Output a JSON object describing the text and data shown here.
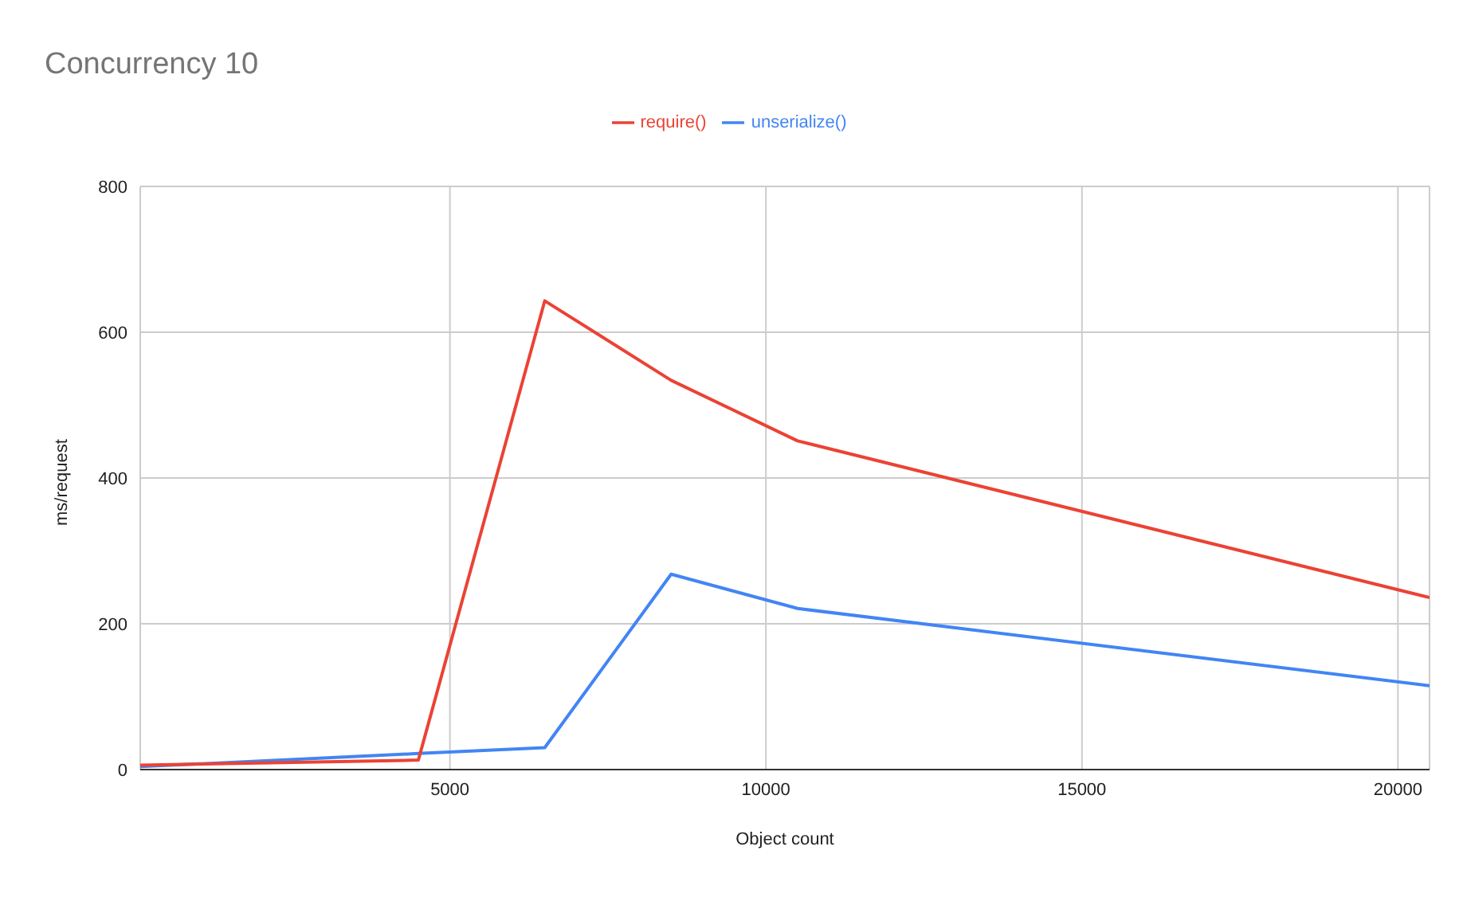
{
  "chart_data": {
    "type": "line",
    "title": "Concurrency 10",
    "xlabel": "Object count",
    "ylabel": "ms/request",
    "x": [
      100,
      4500,
      6500,
      8500,
      10500,
      20500
    ],
    "series": [
      {
        "name": "unserialize()",
        "color": "#4285f4",
        "values": [
          4,
          22,
          30,
          268,
          221,
          115
        ]
      },
      {
        "name": "require()",
        "color": "#ea4335",
        "values": [
          6,
          13,
          643,
          534,
          451,
          236
        ]
      }
    ],
    "xlim": [
      100,
      20500
    ],
    "xticks": [
      5000,
      10000,
      15000,
      20000
    ],
    "ylim": [
      0,
      800
    ],
    "yticks": [
      0,
      200,
      400,
      600,
      800
    ],
    "grid": true,
    "legend": "top",
    "marker": "none"
  }
}
